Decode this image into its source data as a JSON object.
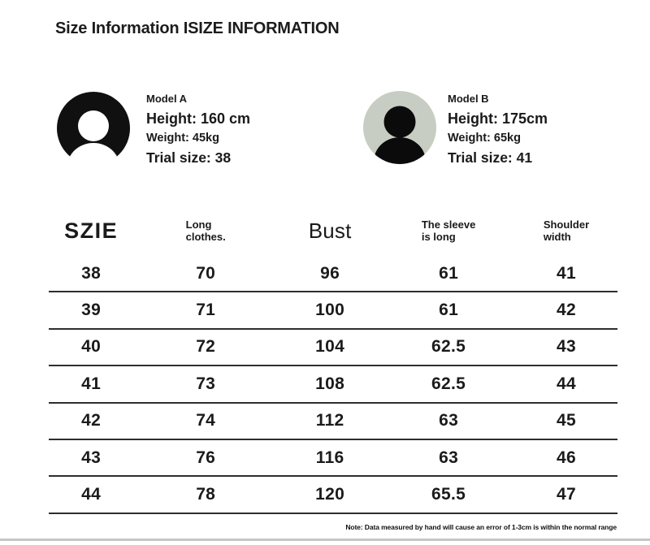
{
  "title": "Size Information ISIZE INFORMATION",
  "models": [
    {
      "name": "Model A",
      "height": "Height: 160 cm",
      "weight": "Weight: 45kg",
      "trial": "Trial size: 38"
    },
    {
      "name": "Model B",
      "height": "Height: 175cm",
      "weight": "Weight: 65kg",
      "trial": "Trial size: 41"
    }
  ],
  "table": {
    "headers": [
      "SZIE",
      "Long\nclothes.",
      "Bust",
      "The sleeve\nis long",
      "Shoulder\nwidth"
    ],
    "rows": [
      [
        "38",
        "70",
        "96",
        "61",
        "41"
      ],
      [
        "39",
        "71",
        "100",
        "61",
        "42"
      ],
      [
        "40",
        "72",
        "104",
        "62.5",
        "43"
      ],
      [
        "41",
        "73",
        "108",
        "62.5",
        "44"
      ],
      [
        "42",
        "74",
        "112",
        "63",
        "45"
      ],
      [
        "43",
        "76",
        "116",
        "63",
        "46"
      ],
      [
        "44",
        "78",
        "120",
        "65.5",
        "47"
      ]
    ]
  },
  "note": "Note: Data measured by hand will cause an error of 1-3cm is within the normal range",
  "colors": {
    "avatar_a_bg": "#101010",
    "avatar_a_fg": "#ffffff",
    "avatar_b_bg": "#c7cdc2",
    "avatar_b_fg": "#0b0b0b",
    "row_rule": "#2e2e2e",
    "bottom_bar": "#c6c6c6"
  },
  "chart_data": {
    "type": "table",
    "title": "Size Information ISIZE INFORMATION",
    "columns": [
      "SZIE",
      "Long clothes.",
      "Bust",
      "The sleeve is long",
      "Shoulder width"
    ],
    "rows": [
      [
        38,
        70,
        96,
        61,
        41
      ],
      [
        39,
        71,
        100,
        61,
        42
      ],
      [
        40,
        72,
        104,
        62.5,
        43
      ],
      [
        41,
        73,
        108,
        62.5,
        44
      ],
      [
        42,
        74,
        112,
        63,
        45
      ],
      [
        43,
        76,
        116,
        63,
        46
      ],
      [
        44,
        78,
        120,
        65.5,
        47
      ]
    ],
    "models": [
      {
        "name": "Model A",
        "height_cm": 160,
        "weight_kg": 45,
        "trial_size": 38
      },
      {
        "name": "Model B",
        "height_cm": 175,
        "weight_kg": 65,
        "trial_size": 41
      }
    ],
    "note": "Note: Data measured by hand will cause an error of 1-3cm is within the normal range"
  }
}
